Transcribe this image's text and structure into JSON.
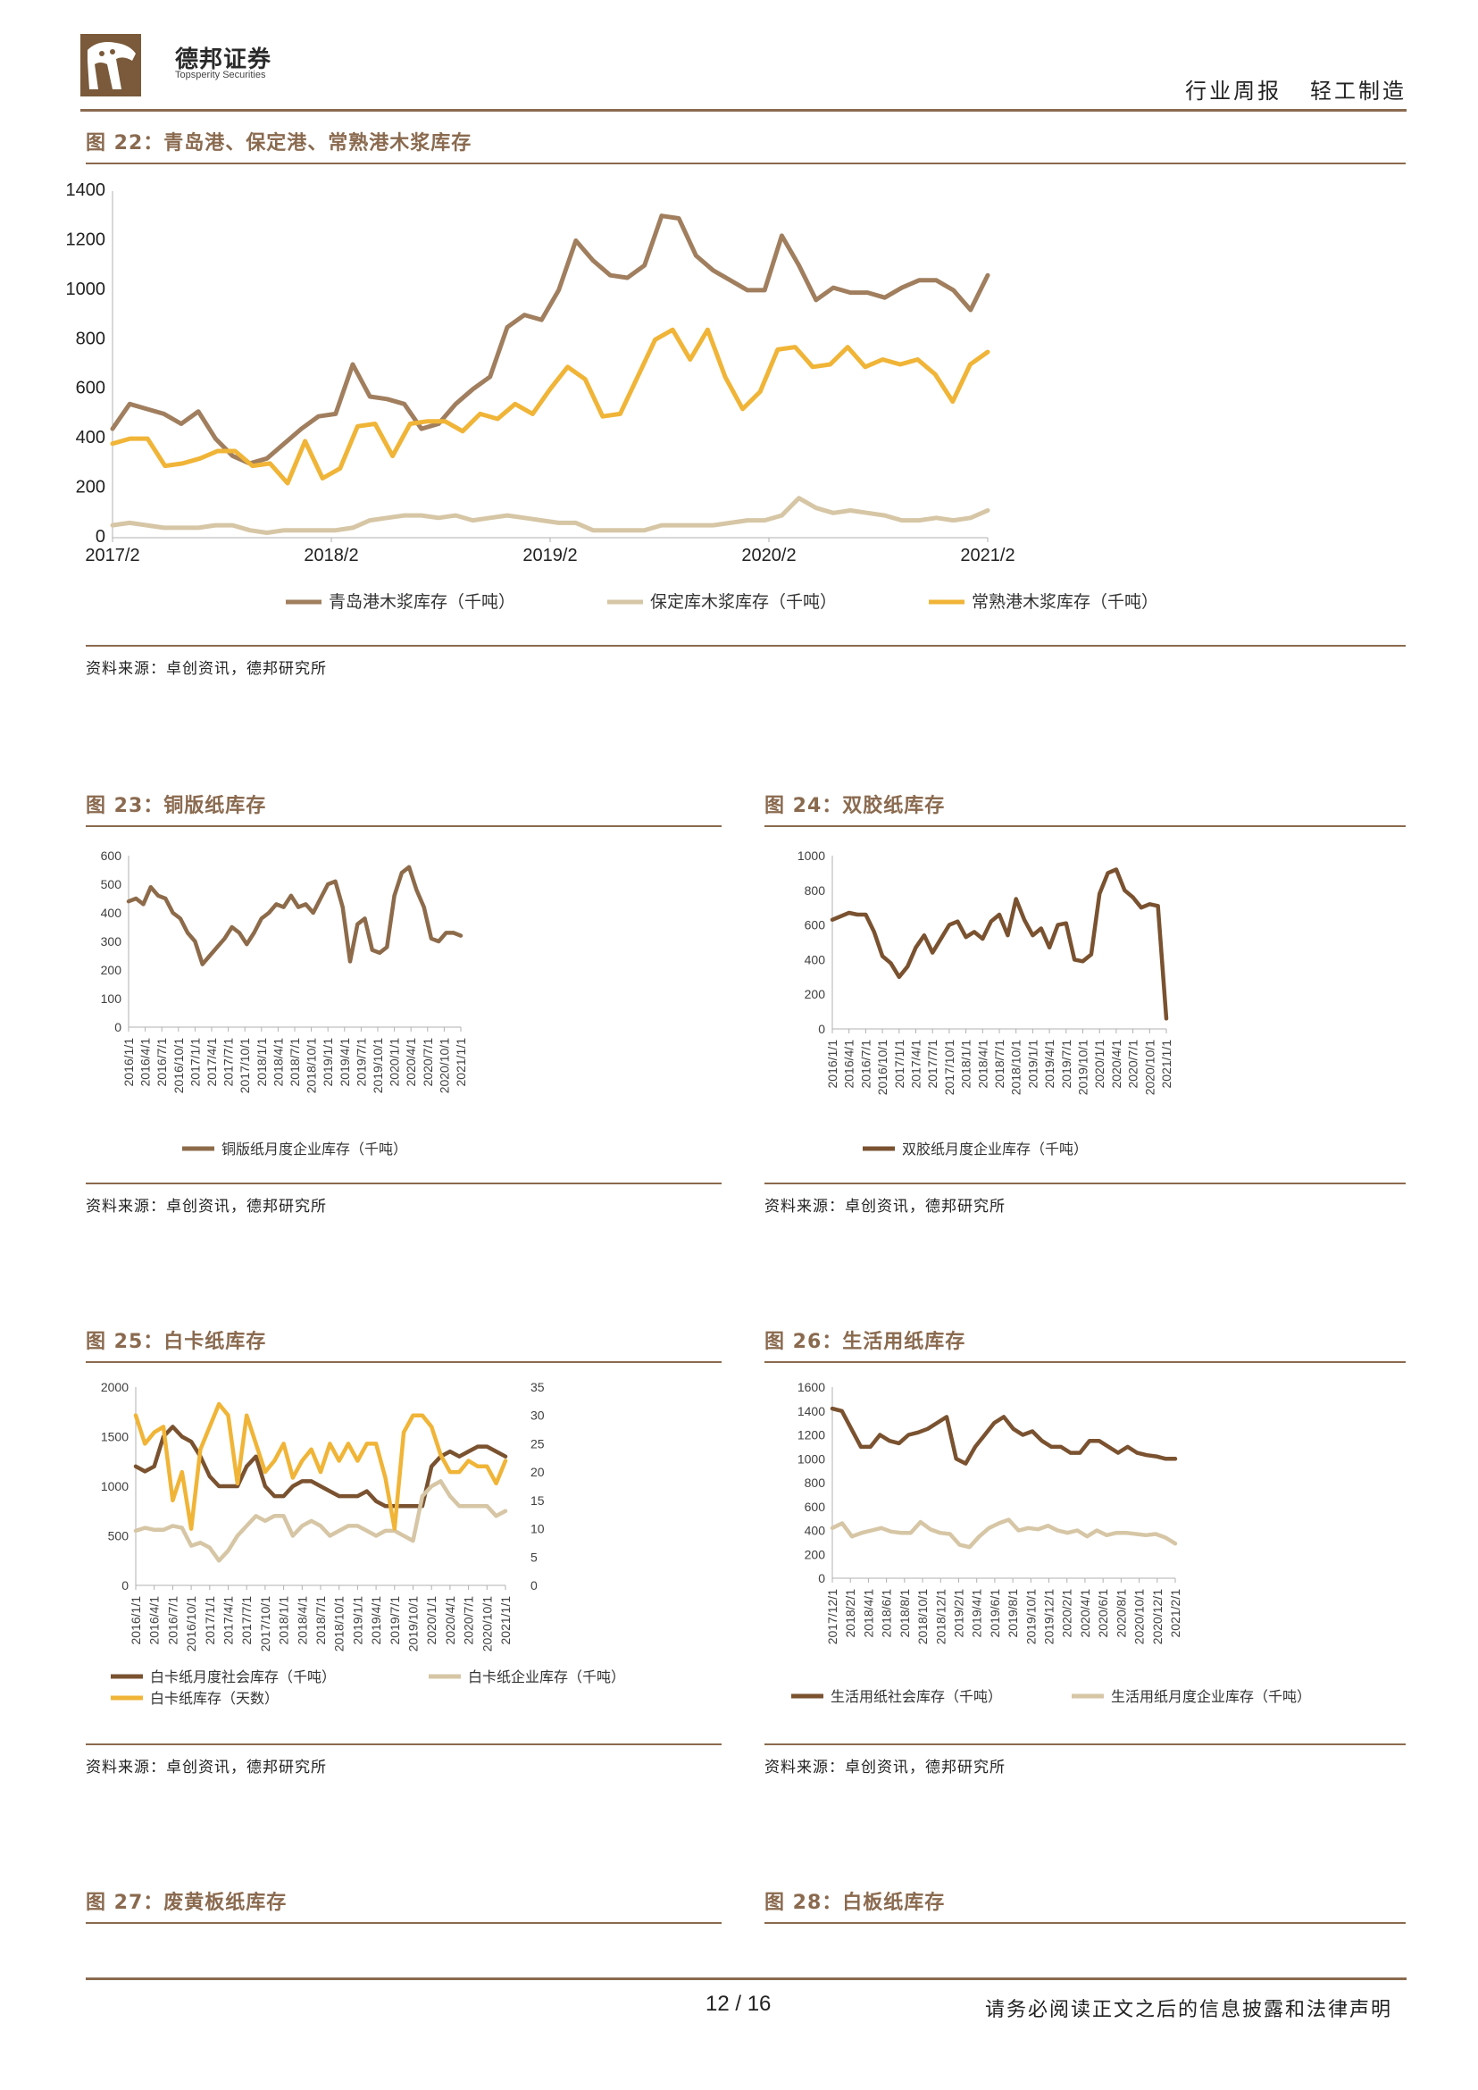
{
  "header": {
    "brand_name": "德邦证券",
    "brand_sub": "Topsperity Securities",
    "report_type": "行业周报",
    "sector": "轻工制造"
  },
  "colors": {
    "accent": "#8a6a4f",
    "dark_brown": "#8d6b4a",
    "brown2": "#7a5230",
    "beige": "#d6c6a5",
    "gold": "#f0b437"
  },
  "figures": {
    "f22": {
      "title": "图 22：青岛港、保定港、常熟港木浆库存",
      "source": "资料来源：卓创资讯，德邦研究所"
    },
    "f23": {
      "title": "图 23：铜版纸库存",
      "source": "资料来源：卓创资讯，德邦研究所"
    },
    "f24": {
      "title": "图 24：双胶纸库存",
      "source": "资料来源：卓创资讯，德邦研究所"
    },
    "f25": {
      "title": "图 25：白卡纸库存",
      "source": "资料来源：卓创资讯，德邦研究所"
    },
    "f26": {
      "title": "图 26：生活用纸库存",
      "source": "资料来源：卓创资讯，德邦研究所"
    },
    "f27": {
      "title": "图 27：废黄板纸库存"
    },
    "f28": {
      "title": "图 28：白板纸库存"
    }
  },
  "footer": {
    "page": "12 / 16",
    "disclaimer": "请务必阅读正文之后的信息披露和法律声明"
  },
  "chart_data": [
    {
      "id": "f22",
      "type": "line",
      "x_ticks": [
        "2017/2",
        "2018/2",
        "2019/2",
        "2020/2",
        "2021/2"
      ],
      "ylim": [
        0,
        1400
      ],
      "y_ticks": [
        0,
        200,
        400,
        600,
        800,
        1000,
        1200,
        1400
      ],
      "series": [
        {
          "name": "青岛港木浆库存（千吨）",
          "color": "#a07e5e",
          "values": [
            440,
            540,
            520,
            500,
            460,
            510,
            400,
            330,
            300,
            320,
            380,
            440,
            490,
            500,
            700,
            570,
            560,
            540,
            440,
            460,
            540,
            600,
            650,
            850,
            900,
            880,
            1000,
            1200,
            1120,
            1060,
            1050,
            1100,
            1300,
            1290,
            1140,
            1080,
            1040,
            1000,
            1000,
            1220,
            1100,
            960,
            1010,
            990,
            990,
            970,
            1010,
            1040,
            1040,
            1000,
            920,
            1060
          ]
        },
        {
          "name": "保定库木浆库存（千吨）",
          "color": "#d6c6a5",
          "values": [
            50,
            60,
            50,
            40,
            40,
            40,
            50,
            50,
            30,
            20,
            30,
            30,
            30,
            30,
            40,
            70,
            80,
            90,
            90,
            80,
            90,
            70,
            80,
            90,
            80,
            70,
            60,
            60,
            30,
            30,
            30,
            30,
            50,
            50,
            50,
            50,
            60,
            70,
            70,
            90,
            160,
            120,
            100,
            110,
            100,
            90,
            70,
            70,
            80,
            70,
            80,
            110
          ]
        },
        {
          "name": "常熟港木浆库存（千吨）",
          "color": "#f0b437",
          "values": [
            380,
            400,
            400,
            290,
            300,
            320,
            350,
            350,
            290,
            300,
            220,
            390,
            240,
            280,
            450,
            460,
            330,
            460,
            470,
            470,
            430,
            500,
            480,
            540,
            500,
            600,
            690,
            640,
            490,
            500,
            650,
            800,
            840,
            720,
            840,
            650,
            520,
            590,
            760,
            770,
            690,
            700,
            770,
            690,
            720,
            700,
            720,
            660,
            550,
            700,
            750
          ]
        }
      ]
    },
    {
      "id": "f23",
      "type": "line",
      "x_ticks": [
        "2016/1/1",
        "2016/4/1",
        "2016/7/1",
        "2016/10/1",
        "2017/1/1",
        "2017/4/1",
        "2017/7/1",
        "2017/10/1",
        "2018/1/1",
        "2018/4/1",
        "2018/7/1",
        "2018/10/1",
        "2019/1/1",
        "2019/4/1",
        "2019/7/1",
        "2019/10/1",
        "2020/1/1",
        "2020/4/1",
        "2020/7/1",
        "2020/10/1",
        "2021/1/1"
      ],
      "ylim": [
        0,
        600
      ],
      "y_ticks": [
        0,
        100,
        200,
        300,
        400,
        500,
        600
      ],
      "series": [
        {
          "name": "铜版纸月度企业库存（千吨）",
          "color": "#8d6b4a",
          "values": [
            440,
            450,
            430,
            490,
            460,
            450,
            400,
            380,
            330,
            300,
            220,
            250,
            280,
            310,
            350,
            330,
            290,
            330,
            380,
            400,
            430,
            420,
            460,
            420,
            430,
            400,
            450,
            500,
            510,
            420,
            230,
            360,
            380,
            270,
            260,
            280,
            460,
            540,
            560,
            480,
            420,
            310,
            300,
            330,
            330,
            320
          ]
        }
      ]
    },
    {
      "id": "f24",
      "type": "line",
      "x_ticks": [
        "2016/1/1",
        "2016/4/1",
        "2016/7/1",
        "2016/10/1",
        "2017/1/1",
        "2017/4/1",
        "2017/7/1",
        "2017/10/1",
        "2018/1/1",
        "2018/4/1",
        "2018/7/1",
        "2018/10/1",
        "2019/1/1",
        "2019/4/1",
        "2019/7/1",
        "2019/10/1",
        "2020/1/1",
        "2020/4/1",
        "2020/7/1",
        "2020/10/1",
        "2021/1/1"
      ],
      "ylim": [
        0,
        1000
      ],
      "y_ticks": [
        0,
        200,
        400,
        600,
        800,
        1000
      ],
      "series": [
        {
          "name": "双胶纸月度企业库存（千吨）",
          "color": "#7a5230",
          "values": [
            630,
            650,
            670,
            660,
            660,
            560,
            420,
            380,
            300,
            360,
            470,
            540,
            440,
            520,
            600,
            620,
            530,
            560,
            520,
            620,
            660,
            540,
            750,
            630,
            540,
            580,
            470,
            600,
            610,
            400,
            390,
            430,
            780,
            900,
            920,
            800,
            760,
            700,
            720,
            710,
            60
          ]
        }
      ]
    },
    {
      "id": "f25",
      "type": "line",
      "x_ticks": [
        "2016/1/1",
        "2016/4/1",
        "2016/7/1",
        "2016/10/1",
        "2017/1/1",
        "2017/4/1",
        "2017/7/1",
        "2017/10/1",
        "2018/1/1",
        "2018/4/1",
        "2018/7/1",
        "2018/10/1",
        "2019/1/1",
        "2019/4/1",
        "2019/7/1",
        "2019/10/1",
        "2020/1/1",
        "2020/4/1",
        "2020/7/1",
        "2020/10/1",
        "2021/1/1"
      ],
      "ylim": [
        0,
        2000
      ],
      "y_ticks": [
        0,
        500,
        1000,
        1500,
        2000
      ],
      "y2lim": [
        0,
        35
      ],
      "y2_ticks": [
        0,
        5,
        10,
        15,
        20,
        25,
        30,
        35
      ],
      "series": [
        {
          "name": "白卡纸月度社会库存（千吨）",
          "color": "#7a5230",
          "axis": "left",
          "values": [
            1200,
            1150,
            1200,
            1500,
            1600,
            1500,
            1450,
            1300,
            1100,
            1000,
            1000,
            1000,
            1200,
            1300,
            1000,
            900,
            900,
            1000,
            1050,
            1050,
            1000,
            950,
            900,
            900,
            900,
            950,
            850,
            800,
            800,
            800,
            800,
            800,
            1200,
            1300,
            1350,
            1300,
            1350,
            1400,
            1400,
            1350,
            1300
          ]
        },
        {
          "name": "白卡纸企业库存（千吨）",
          "color": "#d6c6a5",
          "axis": "left",
          "values": [
            550,
            580,
            560,
            560,
            600,
            580,
            400,
            430,
            380,
            250,
            350,
            500,
            600,
            700,
            650,
            700,
            700,
            500,
            600,
            650,
            600,
            500,
            550,
            600,
            600,
            550,
            500,
            550,
            550,
            500,
            450,
            900,
            1000,
            1050,
            900,
            800,
            800,
            800,
            800,
            700,
            750
          ]
        },
        {
          "name": "白卡纸库存（天数）",
          "color": "#f0b437",
          "axis": "right",
          "values": [
            30,
            25,
            27,
            28,
            15,
            20,
            10,
            24,
            28,
            32,
            30,
            18,
            30,
            25,
            20,
            22,
            25,
            19,
            22,
            24,
            20,
            25,
            22,
            25,
            22,
            25,
            25,
            19,
            10,
            27,
            30,
            30,
            28,
            23,
            20,
            20,
            22,
            21,
            21,
            18,
            22
          ]
        }
      ]
    },
    {
      "id": "f26",
      "type": "line",
      "x_ticks": [
        "2017/12/1",
        "2018/2/1",
        "2018/4/1",
        "2018/6/1",
        "2018/8/1",
        "2018/10/1",
        "2018/12/1",
        "2019/2/1",
        "2019/4/1",
        "2019/6/1",
        "2019/8/1",
        "2019/10/1",
        "2019/12/1",
        "2020/2/1",
        "2020/4/1",
        "2020/6/1",
        "2020/8/1",
        "2020/10/1",
        "2020/12/1",
        "2021/2/1"
      ],
      "ylim": [
        0,
        1600
      ],
      "y_ticks": [
        0,
        200,
        400,
        600,
        800,
        1000,
        1200,
        1400,
        1600
      ],
      "series": [
        {
          "name": "生活用纸社会库存（千吨）",
          "color": "#7a5230",
          "values": [
            1420,
            1400,
            1250,
            1100,
            1100,
            1200,
            1150,
            1130,
            1200,
            1220,
            1250,
            1300,
            1350,
            1000,
            960,
            1100,
            1200,
            1300,
            1350,
            1250,
            1200,
            1230,
            1150,
            1100,
            1100,
            1050,
            1050,
            1150,
            1150,
            1100,
            1050,
            1100,
            1050,
            1030,
            1020,
            1000,
            1000
          ]
        },
        {
          "name": "生活用纸月度企业库存（千吨）",
          "color": "#d6c6a5",
          "values": [
            420,
            460,
            350,
            380,
            400,
            420,
            390,
            380,
            380,
            470,
            410,
            380,
            370,
            280,
            260,
            350,
            420,
            460,
            490,
            400,
            420,
            410,
            440,
            400,
            380,
            400,
            350,
            400,
            360,
            380,
            380,
            370,
            360,
            370,
            340,
            290
          ]
        }
      ]
    }
  ]
}
